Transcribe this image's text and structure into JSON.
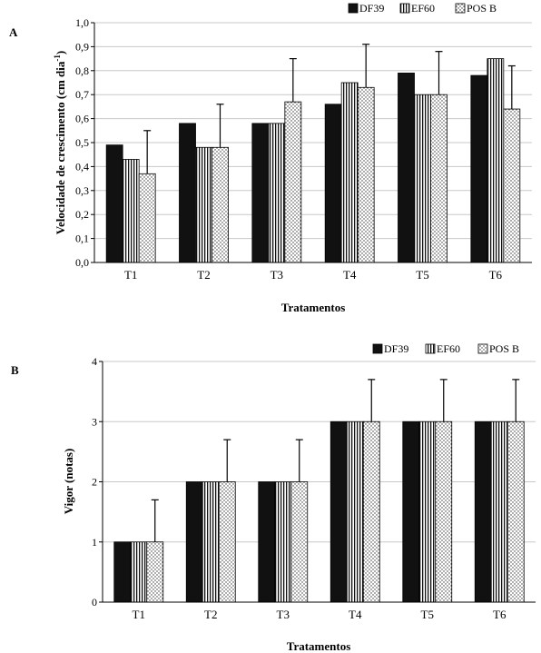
{
  "patterns": {
    "DF39": "solid-black",
    "EF60": "vertical-stripes",
    "POS B": "dotted"
  },
  "colors": {
    "bar_dark": "#111111",
    "stroke": "#000000",
    "background": "#ffffff"
  },
  "chart_data": [
    {
      "type": "bar",
      "panel_letter": "A",
      "title": "",
      "xlabel": "Tratamentos",
      "ylabel": "Velocidade de crescimento (cm dia",
      "ylabel_superscript": "-1",
      "ylabel_suffix": ")",
      "categories": [
        "T1",
        "T2",
        "T3",
        "T4",
        "T5",
        "T6"
      ],
      "ylim": [
        0,
        1.0
      ],
      "yticks": [
        "0,0",
        "0,1",
        "0,2",
        "0,3",
        "0,4",
        "0,5",
        "0,6",
        "0,7",
        "0,8",
        "0,9",
        "1,0"
      ],
      "grid": true,
      "legend_position": "top-right",
      "series": [
        {
          "name": "DF39",
          "pattern": "solid-black",
          "values": [
            0.49,
            0.58,
            0.58,
            0.66,
            0.79,
            0.78
          ],
          "errors": [
            0,
            0,
            0,
            0,
            0,
            0
          ]
        },
        {
          "name": "EF60",
          "pattern": "vertical-stripes",
          "values": [
            0.43,
            0.48,
            0.58,
            0.75,
            0.7,
            0.85
          ],
          "errors": [
            0,
            0,
            0,
            0,
            0,
            0
          ]
        },
        {
          "name": "POS B",
          "pattern": "dotted",
          "values": [
            0.37,
            0.48,
            0.67,
            0.73,
            0.7,
            0.64
          ],
          "errors": [
            0.18,
            0.18,
            0.18,
            0.18,
            0.18,
            0.18
          ]
        }
      ]
    },
    {
      "type": "bar",
      "panel_letter": "B",
      "title": "",
      "xlabel": "Tratamentos",
      "ylabel": "Vigor (notas)",
      "categories": [
        "T1",
        "T2",
        "T3",
        "T4",
        "T5",
        "T6"
      ],
      "ylim": [
        0,
        4
      ],
      "yticks": [
        "0",
        "1",
        "2",
        "3",
        "4"
      ],
      "grid": true,
      "legend_position": "top-right",
      "series": [
        {
          "name": "DF39",
          "pattern": "solid-black",
          "values": [
            1,
            2,
            2,
            3,
            3,
            3
          ],
          "errors": [
            0,
            0,
            0,
            0,
            0,
            0
          ]
        },
        {
          "name": "EF60",
          "pattern": "vertical-stripes",
          "values": [
            1,
            2,
            2,
            3,
            3,
            3
          ],
          "errors": [
            0,
            0,
            0,
            0,
            0,
            0
          ]
        },
        {
          "name": "POS B",
          "pattern": "dotted",
          "values": [
            1,
            2,
            2,
            3,
            3,
            3
          ],
          "errors": [
            0.7,
            0.7,
            0.7,
            0.7,
            0.7,
            0.7
          ]
        }
      ]
    }
  ]
}
